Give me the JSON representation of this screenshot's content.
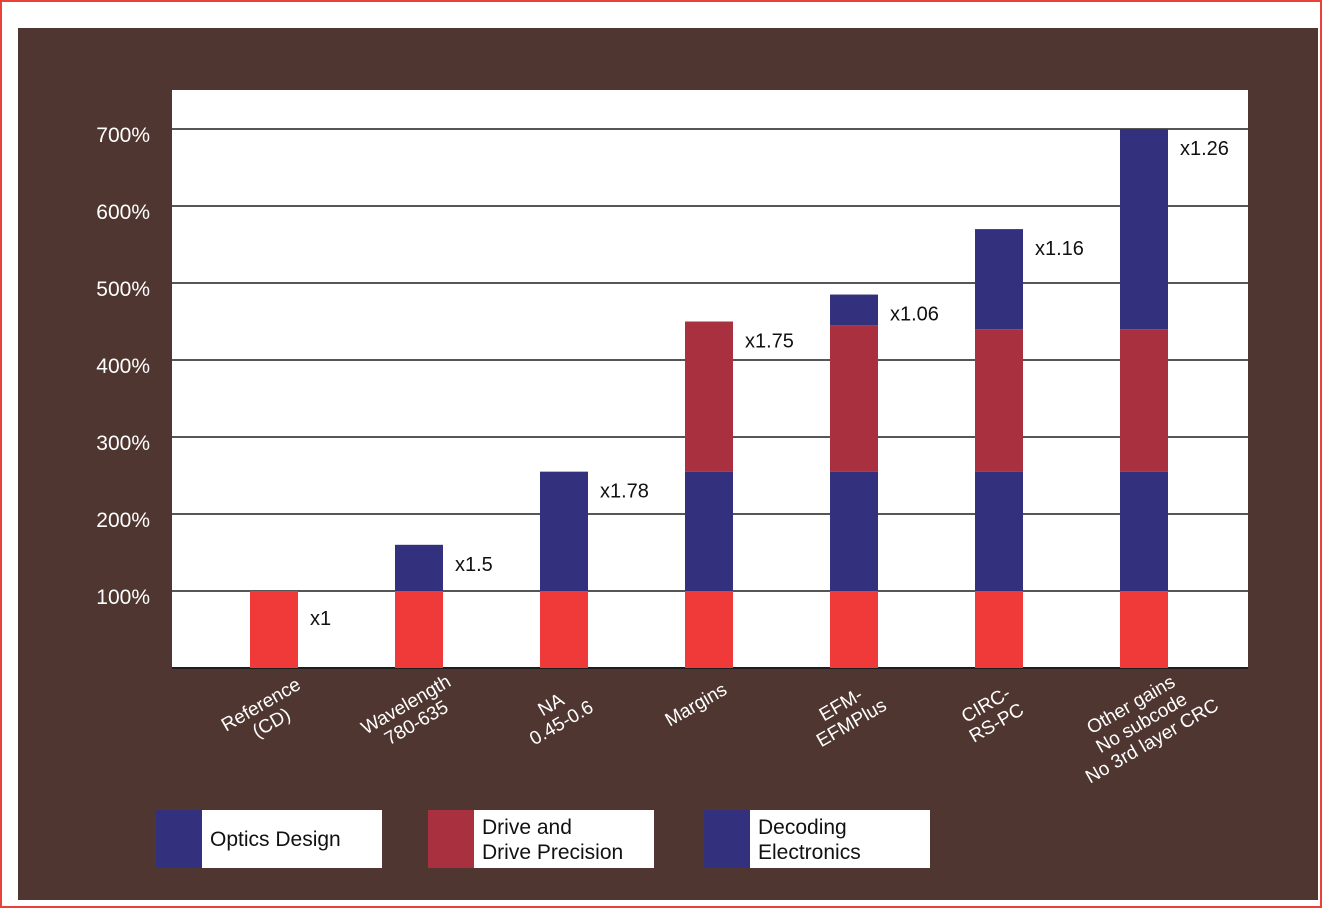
{
  "colors": {
    "frame_border": "#e8423a",
    "panel": "#4f3630",
    "plot_bg": "#ffffff",
    "gridline": "#1e1e1e",
    "reference": "#f03a3a",
    "optics": "#33307e",
    "drive": "#a8303f",
    "decoding": "#33307e",
    "label_text": "#ffffff",
    "legend_box_bg": "#ffffff"
  },
  "chart_data": {
    "type": "bar",
    "stacked": true,
    "title": "",
    "xlabel": "",
    "ylabel": "",
    "ylim": [
      0,
      700
    ],
    "y_ticks": [
      100,
      200,
      300,
      400,
      500,
      600,
      700
    ],
    "y_tick_labels": [
      "100%",
      "200%",
      "300%",
      "400%",
      "500%",
      "600%",
      "700%"
    ],
    "grid": true,
    "legend_position": "bottom",
    "categories": [
      [
        "Reference",
        "(CD)"
      ],
      [
        "Wavelength",
        "780-635"
      ],
      [
        "NA",
        "0.45-0.6"
      ],
      [
        "Margins"
      ],
      [
        "EFM-",
        "EFMPlus"
      ],
      [
        "CIRC-",
        "RS-PC"
      ],
      [
        "Other gains",
        "No subcode",
        "No 3rd layer CRC"
      ]
    ],
    "segments": [
      [
        {
          "type": "reference",
          "value": 100
        }
      ],
      [
        {
          "type": "reference",
          "value": 100
        },
        {
          "type": "optics",
          "value": 60
        }
      ],
      [
        {
          "type": "reference",
          "value": 100
        },
        {
          "type": "optics",
          "value": 155
        }
      ],
      [
        {
          "type": "reference",
          "value": 100
        },
        {
          "type": "optics",
          "value": 155
        },
        {
          "type": "drive",
          "value": 195
        }
      ],
      [
        {
          "type": "reference",
          "value": 100
        },
        {
          "type": "optics",
          "value": 155
        },
        {
          "type": "drive",
          "value": 190
        },
        {
          "type": "decoding",
          "value": 40
        }
      ],
      [
        {
          "type": "reference",
          "value": 100
        },
        {
          "type": "optics",
          "value": 155
        },
        {
          "type": "drive",
          "value": 185
        },
        {
          "type": "decoding",
          "value": 130
        }
      ],
      [
        {
          "type": "reference",
          "value": 100
        },
        {
          "type": "optics",
          "value": 155
        },
        {
          "type": "drive",
          "value": 185
        },
        {
          "type": "decoding",
          "value": 260
        }
      ]
    ],
    "multipliers": [
      "x1",
      "x1.5",
      "x1.78",
      "x1.75",
      "x1.06",
      "x1.16",
      "x1.26"
    ],
    "legend": [
      {
        "key": "optics",
        "lines": [
          "Optics Design"
        ]
      },
      {
        "key": "drive",
        "lines": [
          "Drive and",
          "Drive Precision"
        ]
      },
      {
        "key": "decoding",
        "lines": [
          "Decoding",
          "Electronics"
        ]
      }
    ]
  }
}
